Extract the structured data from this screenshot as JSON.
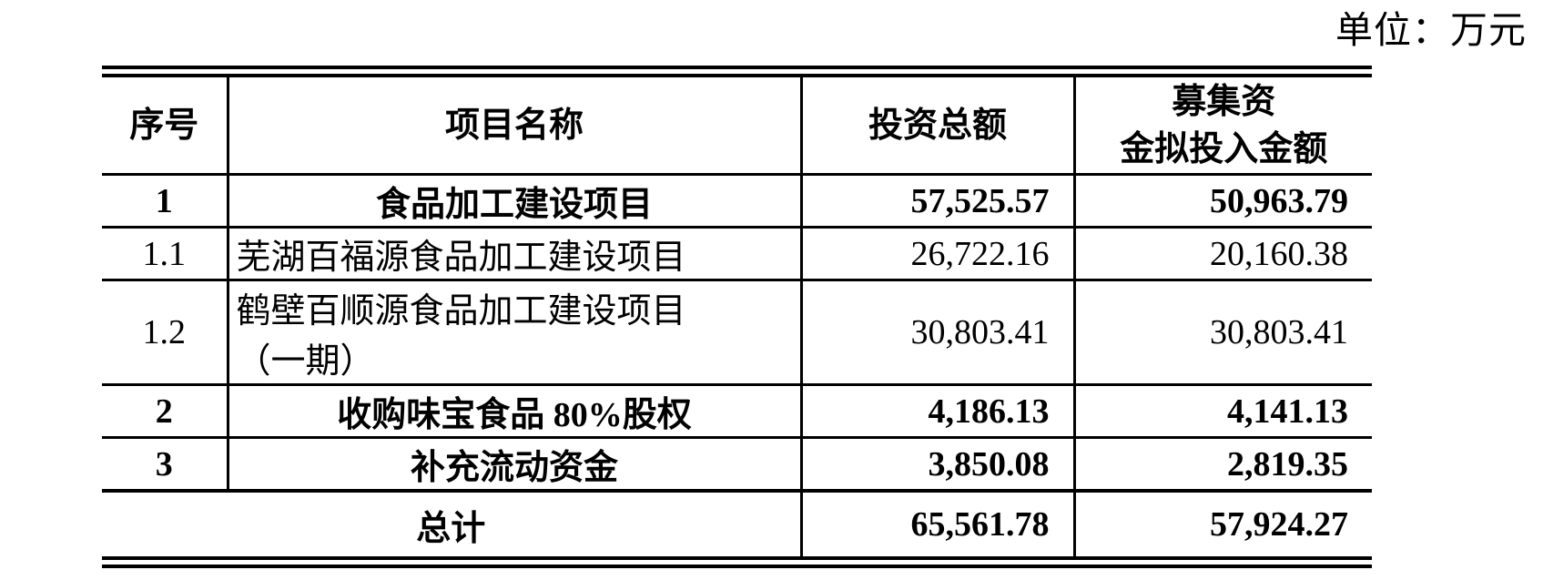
{
  "unit_label": "单位：万元",
  "table": {
    "headers": {
      "serial": "序号",
      "project_name": "项目名称",
      "total_investment": "投资总额",
      "raised_funds_line1": "募集资",
      "raised_funds_line2": "金拟投入金额"
    },
    "rows": [
      {
        "no": "1",
        "name": "食品加工建设项目",
        "invest": "57,525.57",
        "raise": "50,963.79"
      },
      {
        "no": "1.1",
        "name": "芜湖百福源食品加工建设项目",
        "invest": "26,722.16",
        "raise": "20,160.38"
      },
      {
        "no": "1.2",
        "name_line1": "鹤壁百顺源食品加工建设项目",
        "name_line2": "（一期）",
        "invest": "30,803.41",
        "raise": "30,803.41"
      },
      {
        "no": "2",
        "name": "收购味宝食品 80%股权",
        "invest": "4,186.13",
        "raise": "4,141.13"
      },
      {
        "no": "3",
        "name": "补充流动资金",
        "invest": "3,850.08",
        "raise": "2,819.35"
      }
    ],
    "total": {
      "label": "总计",
      "invest": "65,561.78",
      "raise": "57,924.27"
    }
  }
}
